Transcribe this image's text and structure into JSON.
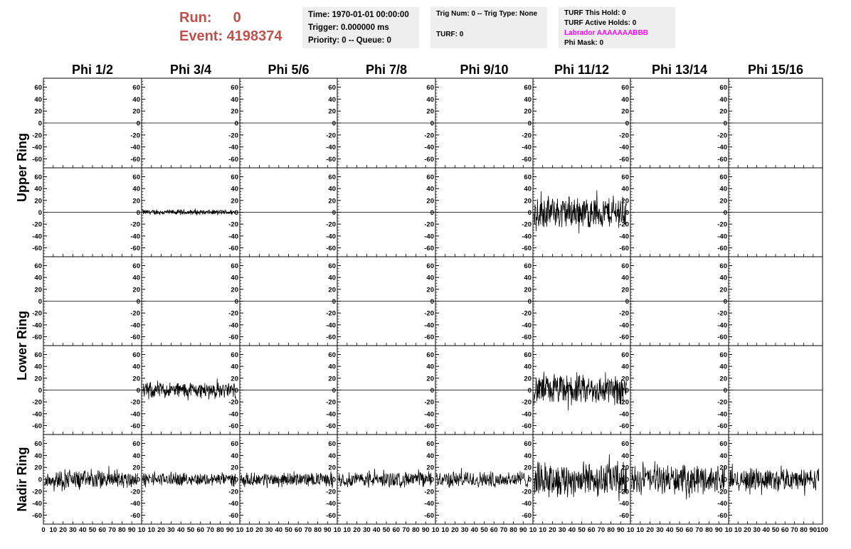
{
  "header": {
    "run_label": "Run:",
    "run_value": "0",
    "event_label": "Event:",
    "event_value": "4198374",
    "time": "Time: 1970-01-01 00:00:00",
    "trigger": "Trigger: 0.000000 ms",
    "priority": "Priority: 0 -- Queue: 0",
    "trig_num": "Trig Num: 0 -- Trig Type: None",
    "turf": "TURF: 0",
    "turf_this_hold": "TURF This Hold: 0",
    "turf_active_holds": "TURF Active Holds: 0",
    "labrador": "Labrador AAAAAAABBB",
    "phi_mask": "Phi Mask: 0",
    "colors": {
      "run_text": "#c0504d",
      "labrador_text": "#ff00ff",
      "info_bg": "#eeeeee"
    }
  },
  "chart_data": {
    "type": "line",
    "layout": "grid 5 rows x 8 columns of waveform panels",
    "columns": [
      "Phi 1/2",
      "Phi 3/4",
      "Phi 5/6",
      "Phi 7/8",
      "Phi 9/10",
      "Phi 11/12",
      "Phi 13/14",
      "Phi 15/16"
    ],
    "row_labels": [
      "Upper Ring",
      "Lower Ring",
      "Nadir Ring"
    ],
    "row_label_spans": [
      [
        0,
        1
      ],
      [
        2,
        3
      ],
      [
        4,
        4
      ]
    ],
    "xlim": [
      0,
      100
    ],
    "ylim": [
      -75,
      75
    ],
    "y_ticks": [
      -60,
      -40,
      -20,
      0,
      20,
      40,
      60
    ],
    "x_ticks": [
      0,
      10,
      20,
      30,
      40,
      50,
      60,
      70,
      80,
      90,
      100
    ],
    "x_tick_labels_first": [
      "0",
      "10",
      "20",
      "30",
      "40",
      "50",
      "60",
      "70",
      "80",
      "90",
      "10"
    ],
    "x_tick_labels_other": [
      "10",
      "20",
      "30",
      "40",
      "50",
      "60",
      "70",
      "80",
      "90",
      "10"
    ],
    "x_tick_labels_last": [
      "10",
      "20",
      "30",
      "40",
      "50",
      "60",
      "70",
      "80",
      "90",
      "100"
    ],
    "zero_line_rows": [
      0,
      1,
      2,
      3
    ],
    "waveforms": [
      [
        0,
        0,
        0,
        0,
        0,
        0,
        0,
        0
      ],
      [
        0,
        5,
        0,
        0,
        0,
        30,
        0,
        0
      ],
      [
        0,
        0,
        0,
        0,
        0,
        0,
        0,
        0
      ],
      [
        0,
        15,
        0,
        0,
        0,
        28,
        0,
        0
      ],
      [
        17,
        12,
        12,
        14,
        15,
        32,
        26,
        20
      ]
    ]
  }
}
